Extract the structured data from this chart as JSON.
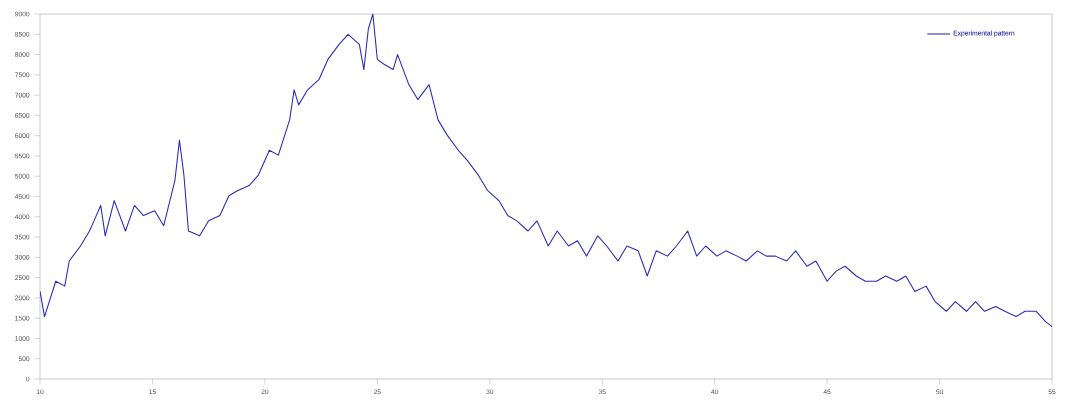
{
  "chart_data": {
    "type": "line",
    "xlim": [
      10,
      55
    ],
    "xticks": [
      10,
      15,
      20,
      25,
      30,
      35,
      40,
      45,
      50,
      55
    ],
    "ylim": [
      0,
      9000
    ],
    "yticks": [
      0,
      500,
      1000,
      1500,
      2000,
      2500,
      3000,
      3500,
      4000,
      4500,
      5000,
      5500,
      6000,
      6500,
      7000,
      7500,
      8000,
      8500,
      9000
    ],
    "grid": false,
    "legend": "top right",
    "marker": "none",
    "line_style": "solid",
    "series": [
      {
        "name": "Experimental pattern",
        "color": "#2a2ab8",
        "x": [
          10.0,
          10.2,
          10.7,
          11.1,
          11.3,
          11.8,
          12.2,
          12.4,
          12.7,
          12.9,
          13.3,
          13.8,
          14.2,
          14.6,
          15.1,
          15.5,
          16.0,
          16.2,
          16.4,
          16.6,
          17.1,
          17.5,
          18.0,
          18.4,
          18.8,
          19.3,
          19.7,
          20.2,
          20.6,
          21.1,
          21.3,
          21.5,
          21.9,
          22.4,
          22.8,
          23.3,
          23.7,
          24.2,
          24.4,
          24.6,
          24.8,
          25.0,
          25.3,
          25.7,
          25.9,
          26.4,
          26.8,
          27.3,
          27.7,
          28.1,
          28.6,
          29.0,
          29.5,
          29.9,
          30.4,
          30.8,
          31.2,
          31.7,
          32.1,
          32.6,
          33.0,
          33.5,
          33.9,
          34.3,
          34.8,
          35.2,
          35.7,
          36.1,
          36.6,
          37.0,
          37.4,
          37.9,
          38.3,
          38.8,
          39.2,
          39.6,
          40.1,
          40.5,
          41.0,
          41.4,
          41.9,
          42.3,
          42.7,
          43.2,
          43.6,
          44.1,
          44.5,
          45.0,
          45.4,
          45.8,
          46.3,
          46.7,
          47.2,
          47.6,
          48.1,
          48.5,
          48.9,
          49.4,
          49.8,
          50.3,
          50.7,
          51.2,
          51.6,
          52.0,
          52.5,
          52.9,
          53.4,
          53.8,
          54.3,
          54.7,
          55.0
        ],
        "values": [
          2160,
          1540,
          2410,
          2290,
          2910,
          3280,
          3650,
          3900,
          4280,
          3530,
          4400,
          3650,
          4280,
          4030,
          4150,
          3780,
          4900,
          5890,
          5020,
          3650,
          3530,
          3900,
          4030,
          4520,
          4650,
          4770,
          5020,
          5640,
          5520,
          6390,
          7130,
          6760,
          7130,
          7380,
          7880,
          8250,
          8500,
          8250,
          7630,
          8630,
          9000,
          7880,
          7760,
          7630,
          8000,
          7260,
          6890,
          7260,
          6390,
          6020,
          5640,
          5390,
          5020,
          4650,
          4400,
          4030,
          3900,
          3650,
          3900,
          3280,
          3650,
          3280,
          3410,
          3030,
          3530,
          3280,
          2910,
          3280,
          3160,
          2540,
          3160,
          3030,
          3280,
          3650,
          3030,
          3280,
          3030,
          3160,
          3030,
          2910,
          3160,
          3030,
          3030,
          2910,
          3160,
          2780,
          2910,
          2410,
          2660,
          2780,
          2540,
          2410,
          2410,
          2540,
          2410,
          2540,
          2160,
          2290,
          1910,
          1670,
          1910,
          1670,
          1910,
          1670,
          1790,
          1670,
          1540,
          1670,
          1670,
          1420,
          1290
        ]
      }
    ]
  }
}
